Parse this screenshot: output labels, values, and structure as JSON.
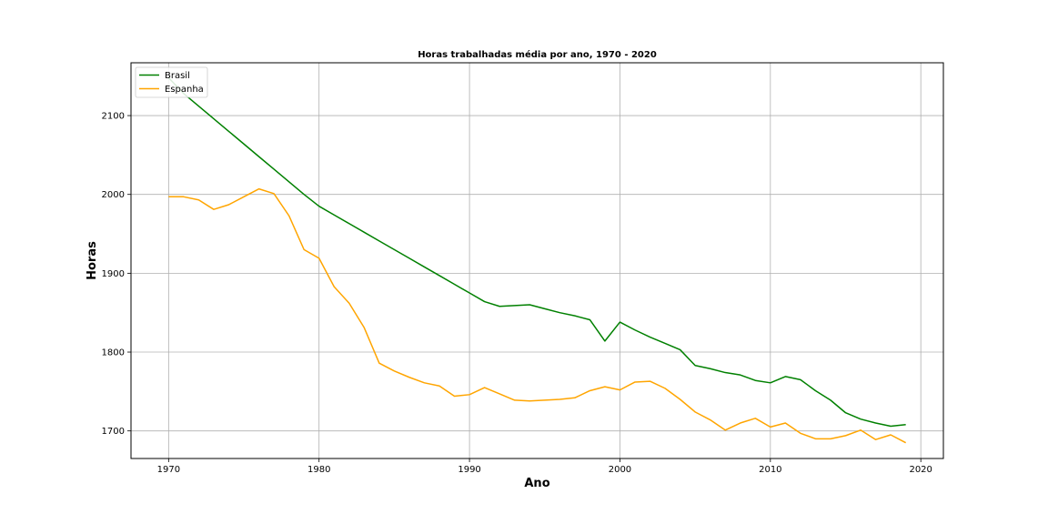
{
  "chart_data": {
    "type": "line",
    "title": "Horas trabalhadas média por ano, 1970 - 2020",
    "xlabel": "Ano",
    "ylabel": "Horas",
    "xlim": [
      1967.5,
      2021.5
    ],
    "ylim": [
      1665,
      2167
    ],
    "xticks": [
      1970,
      1980,
      1990,
      2000,
      2010,
      2020
    ],
    "yticks": [
      1700,
      1800,
      1900,
      2000,
      2100
    ],
    "grid": true,
    "legend_position": "top-left",
    "series": [
      {
        "name": "Brasil",
        "color": "#008000",
        "x": [
          1970,
          1971,
          1972,
          1973,
          1974,
          1975,
          1976,
          1977,
          1978,
          1979,
          1980,
          1981,
          1982,
          1983,
          1984,
          1985,
          1986,
          1987,
          1988,
          1989,
          1990,
          1991,
          1992,
          1993,
          1994,
          1995,
          1996,
          1997,
          1998,
          1999,
          2000,
          2001,
          2002,
          2003,
          2004,
          2005,
          2006,
          2007,
          2008,
          2009,
          2010,
          2011,
          2012,
          2013,
          2014,
          2015,
          2016,
          2017,
          2018,
          2019
        ],
        "y": [
          2148,
          2128,
          2112,
          2096,
          2080,
          2064,
          2048,
          2032,
          2016,
          2000,
          1985,
          1974,
          1963,
          1952,
          1941,
          1930,
          1919,
          1908,
          1897,
          1886,
          1875,
          1864,
          1858,
          1859,
          1860,
          1855,
          1850,
          1846,
          1841,
          1814,
          1838,
          1828,
          1819,
          1811,
          1803,
          1783,
          1779,
          1774,
          1771,
          1764,
          1761,
          1769,
          1765,
          1751,
          1739,
          1723,
          1715,
          1710,
          1706,
          1708
        ]
      },
      {
        "name": "Espanha",
        "color": "#FFA500",
        "x": [
          1970,
          1971,
          1972,
          1973,
          1974,
          1975,
          1976,
          1977,
          1978,
          1979,
          1980,
          1981,
          1982,
          1983,
          1984,
          1985,
          1986,
          1987,
          1988,
          1989,
          1990,
          1991,
          1992,
          1993,
          1994,
          1995,
          1996,
          1997,
          1998,
          1999,
          2000,
          2001,
          2002,
          2003,
          2004,
          2005,
          2006,
          2007,
          2008,
          2009,
          2010,
          2011,
          2012,
          2013,
          2014,
          2015,
          2016,
          2017,
          2018,
          2019
        ],
        "y": [
          1997,
          1997,
          1993,
          1981,
          1987,
          1997,
          2007,
          2001,
          1973,
          1930,
          1919,
          1883,
          1862,
          1831,
          1786,
          1776,
          1768,
          1761,
          1757,
          1744,
          1746,
          1755,
          1747,
          1739,
          1738,
          1739,
          1740,
          1742,
          1751,
          1756,
          1752,
          1762,
          1763,
          1754,
          1740,
          1724,
          1714,
          1701,
          1710,
          1716,
          1705,
          1710,
          1697,
          1690,
          1690,
          1694,
          1701,
          1689,
          1695,
          1685
        ]
      }
    ]
  }
}
